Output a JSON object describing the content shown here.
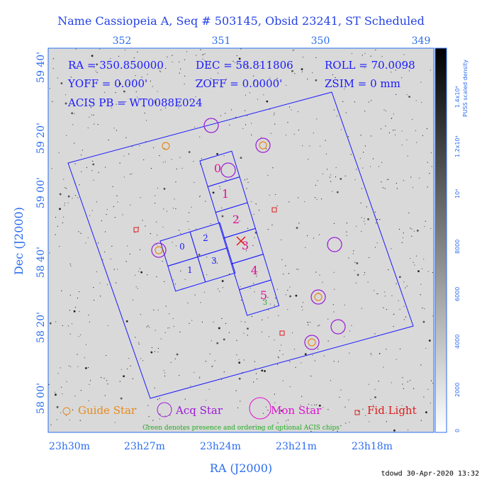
{
  "title": "Name Cassiopeia A, Seq # 503145, Obsid 23241, ST Scheduled",
  "info": [
    "RA = 350.850000",
    "DEC = 58.811806",
    "ROLL = 70.0098",
    "YOFF = 0.000'",
    "ZOFF = 0.0000'",
    "ZSIM = 0 mm",
    "ACIS PB = WT0088E024"
  ],
  "top_ticks": [
    "352",
    "351",
    "350",
    "349"
  ],
  "left_ticks": [
    "59 40'",
    "59 20'",
    "59 00'",
    "58 40'",
    "58 20'",
    "58 00'"
  ],
  "bottom_ticks": [
    "23h30m",
    "23h27m",
    "23h24m",
    "23h21m",
    "23h18m"
  ],
  "x_label": "RA (J2000)",
  "y_label": "Dec (J2000)",
  "colorbar": {
    "label": "PUSS scaled density",
    "ticks": [
      "0",
      "2000",
      "4000",
      "6000",
      "8000",
      "10⁴",
      "1.2x10⁴",
      "1.4x10⁴"
    ]
  },
  "s_chips": [
    "0",
    "1",
    "2",
    "3",
    "4",
    "5"
  ],
  "i_chips": [
    "0",
    "2",
    "1",
    "3"
  ],
  "optional_chip": "3",
  "legend": [
    "Guide Star",
    "Acq Star",
    "Mon Star",
    "Fid Light"
  ],
  "note": "Green denotes presence and ordering of optional ACIS chips",
  "footer": "tdowd 30-Apr-2020 13:32"
}
